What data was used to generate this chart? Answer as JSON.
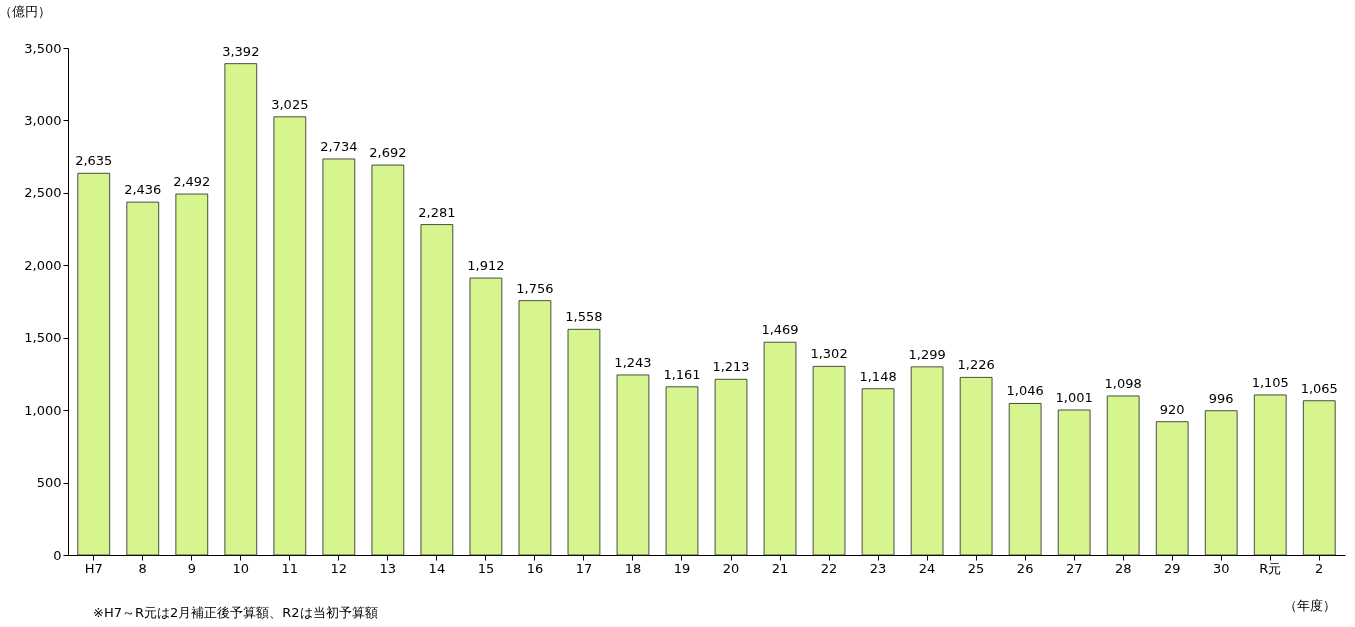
{
  "chart_data": {
    "type": "bar",
    "ylabel": "（億円）",
    "xlabel": "（年度）",
    "categories": [
      "H7",
      "8",
      "9",
      "10",
      "11",
      "12",
      "13",
      "14",
      "15",
      "16",
      "17",
      "18",
      "19",
      "20",
      "21",
      "22",
      "23",
      "24",
      "25",
      "26",
      "27",
      "28",
      "29",
      "30",
      "R元",
      "2"
    ],
    "values": [
      2635,
      2436,
      2492,
      3392,
      3025,
      2734,
      2692,
      2281,
      1912,
      1756,
      1558,
      1243,
      1161,
      1213,
      1469,
      1302,
      1148,
      1299,
      1226,
      1046,
      1001,
      1098,
      920,
      996,
      1105,
      1065
    ],
    "value_labels": [
      "2,635",
      "2,436",
      "2,492",
      "3,392",
      "3,025",
      "2,734",
      "2,692",
      "2,281",
      "1,912",
      "1,756",
      "1,558",
      "1,243",
      "1,161",
      "1,213",
      "1,469",
      "1,302",
      "1,148",
      "1,299",
      "1,226",
      "1,046",
      "1,001",
      "1,098",
      "920",
      "996",
      "1,105",
      "1,065"
    ],
    "color": "#d6f58f",
    "ylim": [
      0,
      3500
    ],
    "yticks": [
      {
        "value": 0,
        "label": "0"
      },
      {
        "value": 500,
        "label": "500"
      },
      {
        "value": 1000,
        "label": "1,000"
      },
      {
        "value": 1500,
        "label": "1,500"
      },
      {
        "value": 2000,
        "label": "2,000"
      },
      {
        "value": 2500,
        "label": "2,500"
      },
      {
        "value": 3000,
        "label": "3,000"
      },
      {
        "value": 3500,
        "label": "3,500"
      }
    ],
    "grid": false,
    "annotations": [
      "※H7～R元は2月補正後予算額、R2は当初予算額"
    ]
  }
}
